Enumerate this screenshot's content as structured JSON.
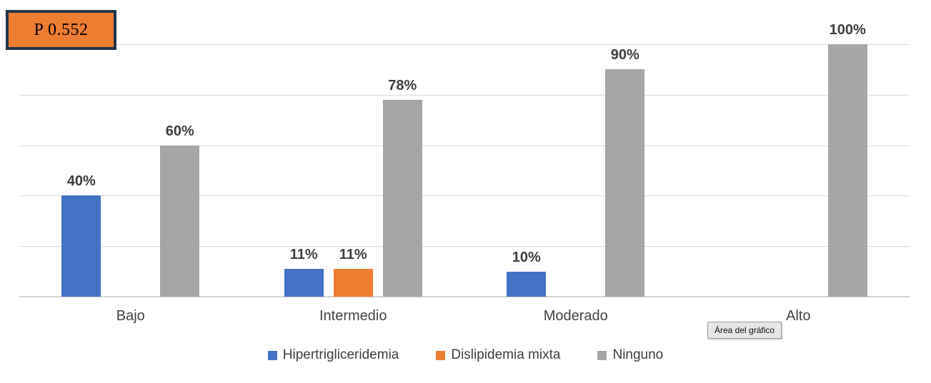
{
  "p_value_box": {
    "label": "P 0.552",
    "fill_color": "#ED7D31",
    "border_color": "#22354A"
  },
  "tooltip": {
    "label": "Área del gráfico"
  },
  "chart_data": {
    "type": "bar",
    "title": "",
    "xlabel": "",
    "ylabel": "",
    "categories": [
      "Bajo",
      "Intermedio",
      "Moderado",
      "Alto"
    ],
    "series": [
      {
        "name": "Hipertrigliceridemia",
        "color": "#4472C4",
        "values": [
          40,
          11,
          10,
          0
        ]
      },
      {
        "name": "Dislipidemia mixta",
        "color": "#ED7D31",
        "values": [
          0,
          11,
          0,
          0
        ]
      },
      {
        "name": "Ninguno",
        "color": "#A6A6A6",
        "values": [
          60,
          78,
          90,
          100
        ]
      }
    ],
    "data_labels": true,
    "value_suffix": "%",
    "ylim": [
      0,
      100
    ],
    "gridline_step": 20,
    "grid": true,
    "grid_color": "#D9D9D9",
    "legend_position": "bottom"
  }
}
